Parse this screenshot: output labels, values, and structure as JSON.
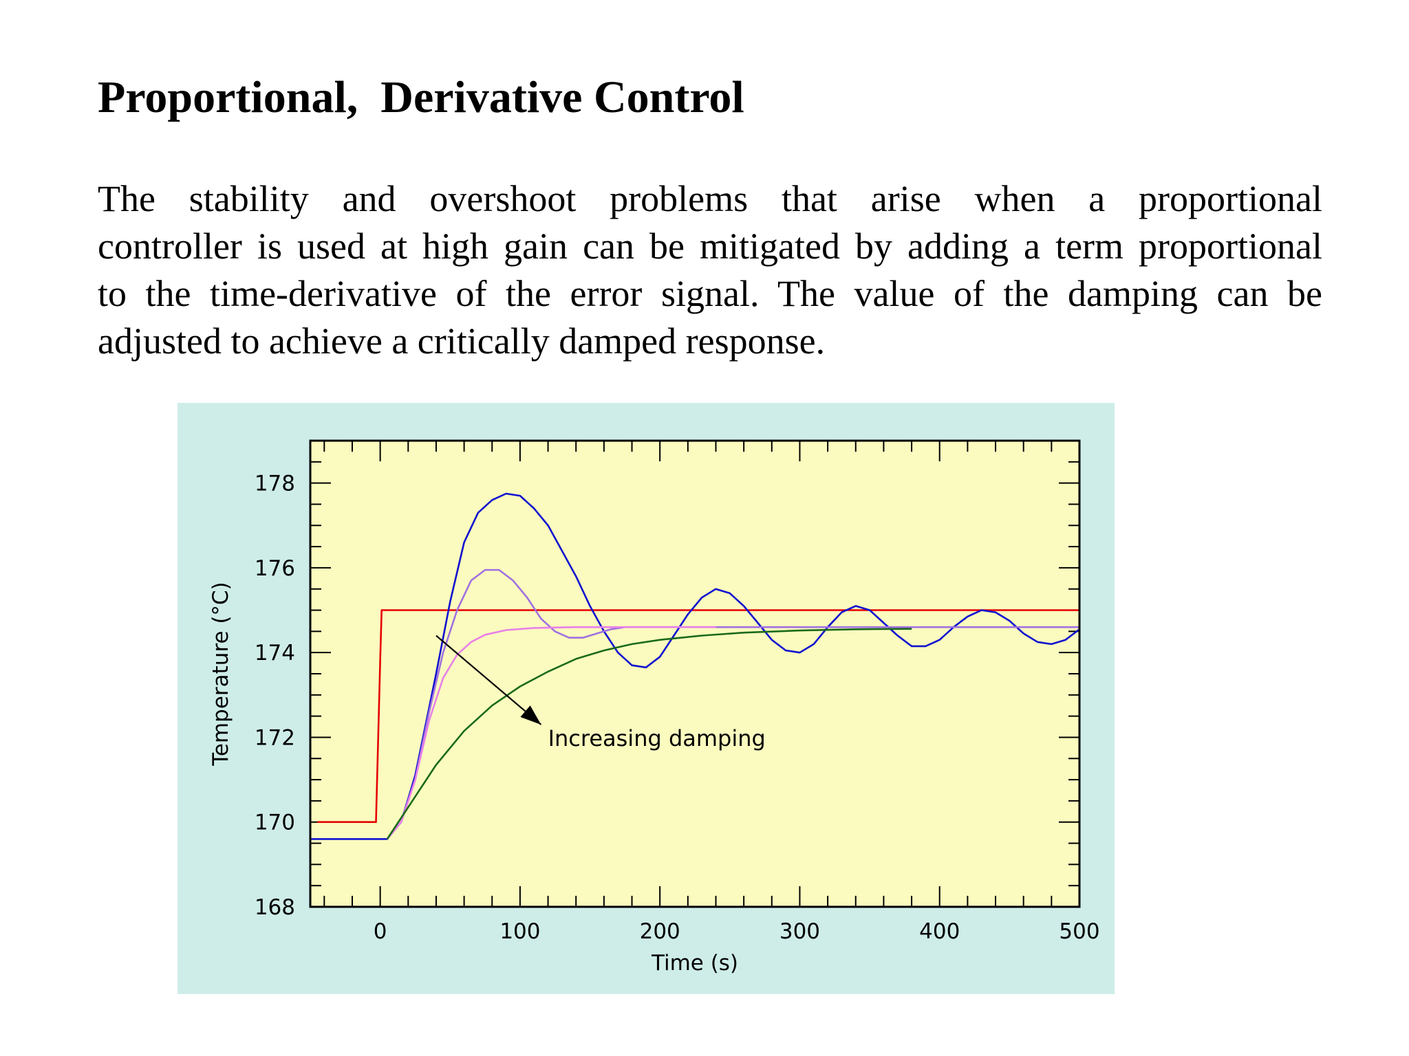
{
  "slide": {
    "title": "Proportional,  Derivative Control",
    "paragraph_lines": [
      "The stability and overshoot problems that arise when a  proportional",
      "controller is used at high gain can be mitigated by adding a term proportional",
      "to the time-derivative of the error signal. The value of the damping can be",
      "adjusted to achieve a critically damped response."
    ]
  },
  "chart_data": {
    "type": "line",
    "xlabel": "Time (s)",
    "ylabel": "Temperature (°C)",
    "xlim": [
      -50,
      500
    ],
    "ylim": [
      168,
      179
    ],
    "x_ticks": [
      0,
      100,
      200,
      300,
      400,
      500
    ],
    "y_ticks": [
      168,
      170,
      172,
      174,
      176,
      178
    ],
    "x_tick_labels": [
      "0",
      "100",
      "200",
      "300",
      "400",
      "500"
    ],
    "y_tick_labels": [
      "168",
      "170",
      "172",
      "174",
      "176",
      "178"
    ],
    "grid": false,
    "plot_background": "#fbfbbf",
    "figure_background": "#ceede9",
    "annotation": {
      "text": "Increasing damping",
      "arrow_from": [
        40,
        174.4
      ],
      "arrow_to": [
        115,
        172.3
      ]
    },
    "series": [
      {
        "color": "#e60000",
        "points": [
          [
            -45,
            170
          ],
          [
            -3,
            170
          ],
          [
            -2,
            171.3
          ],
          [
            0,
            173.8
          ],
          [
            1,
            175
          ],
          [
            500,
            175
          ]
        ]
      },
      {
        "color": "#1010d0",
        "points": [
          [
            -50,
            169.6
          ],
          [
            5,
            169.6
          ],
          [
            15,
            170.0
          ],
          [
            25,
            171.1
          ],
          [
            40,
            173.5
          ],
          [
            50,
            175.2
          ],
          [
            60,
            176.6
          ],
          [
            70,
            177.3
          ],
          [
            80,
            177.6
          ],
          [
            90,
            177.75
          ],
          [
            100,
            177.7
          ],
          [
            110,
            177.4
          ],
          [
            120,
            177.0
          ],
          [
            130,
            176.4
          ],
          [
            140,
            175.8
          ],
          [
            150,
            175.1
          ],
          [
            160,
            174.5
          ],
          [
            170,
            174.0
          ],
          [
            180,
            173.7
          ],
          [
            190,
            173.65
          ],
          [
            200,
            173.9
          ],
          [
            210,
            174.4
          ],
          [
            220,
            174.9
          ],
          [
            230,
            175.3
          ],
          [
            240,
            175.5
          ],
          [
            250,
            175.4
          ],
          [
            260,
            175.1
          ],
          [
            270,
            174.7
          ],
          [
            280,
            174.3
          ],
          [
            290,
            174.05
          ],
          [
            300,
            174.0
          ],
          [
            310,
            174.2
          ],
          [
            320,
            174.6
          ],
          [
            330,
            174.95
          ],
          [
            340,
            175.1
          ],
          [
            350,
            175.0
          ],
          [
            360,
            174.7
          ],
          [
            370,
            174.4
          ],
          [
            380,
            174.15
          ],
          [
            390,
            174.15
          ],
          [
            400,
            174.3
          ],
          [
            410,
            174.6
          ],
          [
            420,
            174.85
          ],
          [
            430,
            175.0
          ],
          [
            440,
            174.95
          ],
          [
            450,
            174.75
          ],
          [
            460,
            174.45
          ],
          [
            470,
            174.25
          ],
          [
            480,
            174.2
          ],
          [
            490,
            174.3
          ],
          [
            500,
            174.55
          ]
        ]
      },
      {
        "color": "#a070e0",
        "points": [
          [
            5,
            169.6
          ],
          [
            15,
            170.0
          ],
          [
            25,
            171.0
          ],
          [
            35,
            172.6
          ],
          [
            45,
            174.0
          ],
          [
            55,
            175.0
          ],
          [
            65,
            175.7
          ],
          [
            75,
            175.95
          ],
          [
            85,
            175.95
          ],
          [
            95,
            175.7
          ],
          [
            105,
            175.3
          ],
          [
            115,
            174.8
          ],
          [
            125,
            174.5
          ],
          [
            135,
            174.35
          ],
          [
            145,
            174.35
          ],
          [
            155,
            174.45
          ],
          [
            165,
            174.55
          ],
          [
            175,
            174.6
          ],
          [
            190,
            174.6
          ],
          [
            210,
            174.6
          ],
          [
            500,
            174.6
          ]
        ]
      },
      {
        "color": "#e880e8",
        "points": [
          [
            5,
            169.6
          ],
          [
            15,
            170.0
          ],
          [
            25,
            171.0
          ],
          [
            35,
            172.4
          ],
          [
            45,
            173.4
          ],
          [
            55,
            173.95
          ],
          [
            65,
            174.25
          ],
          [
            75,
            174.42
          ],
          [
            90,
            174.53
          ],
          [
            110,
            174.58
          ],
          [
            140,
            174.6
          ],
          [
            200,
            174.6
          ],
          [
            240,
            174.6
          ]
        ]
      },
      {
        "color": "#1a6a1a",
        "points": [
          [
            5,
            169.6
          ],
          [
            15,
            170.1
          ],
          [
            25,
            170.6
          ],
          [
            40,
            171.35
          ],
          [
            60,
            172.15
          ],
          [
            80,
            172.75
          ],
          [
            100,
            173.2
          ],
          [
            120,
            173.55
          ],
          [
            140,
            173.85
          ],
          [
            160,
            174.05
          ],
          [
            180,
            174.2
          ],
          [
            200,
            174.3
          ],
          [
            230,
            174.4
          ],
          [
            260,
            174.47
          ],
          [
            300,
            174.52
          ],
          [
            340,
            174.55
          ],
          [
            380,
            174.56
          ]
        ]
      }
    ]
  }
}
